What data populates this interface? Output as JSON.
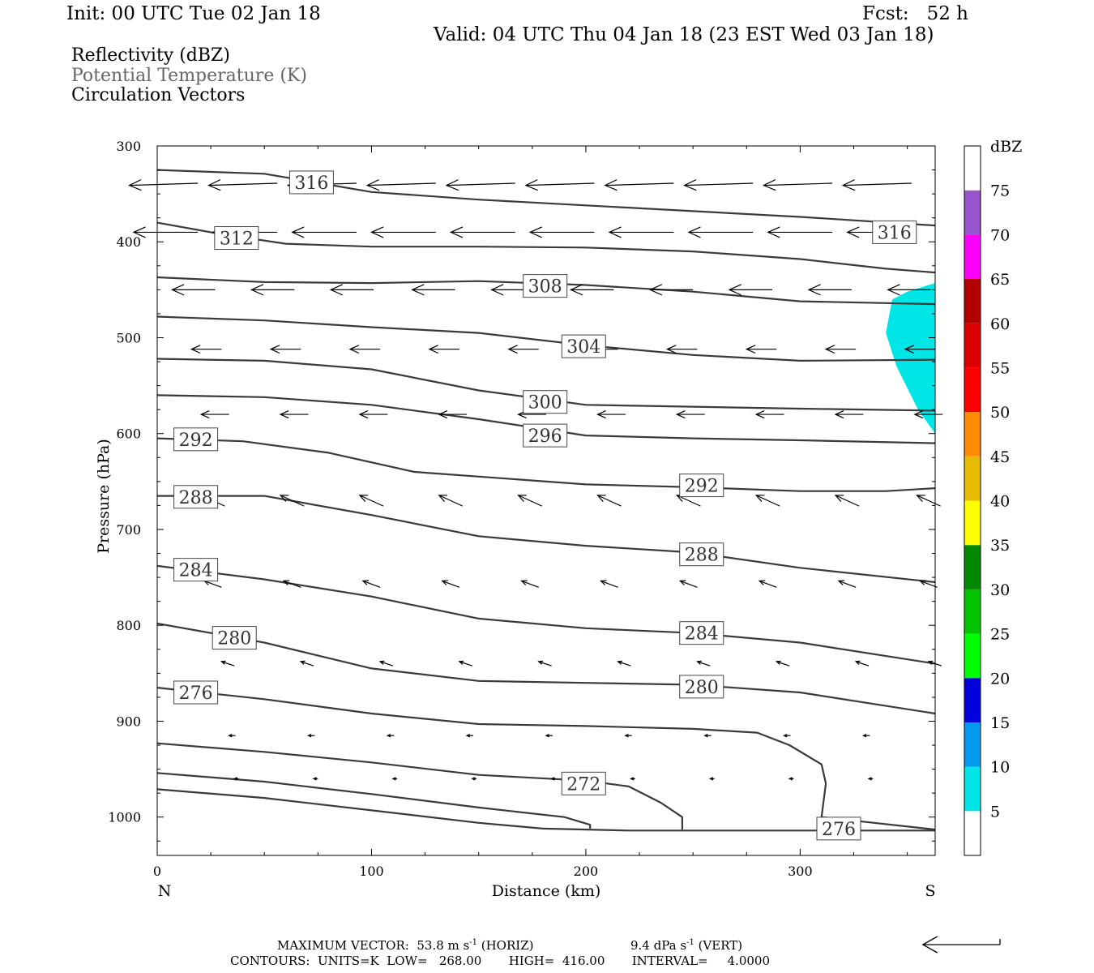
{
  "header": {
    "init": "Init: 00 UTC Tue 02 Jan 18",
    "fcst": "Fcst:   52 h",
    "valid": "Valid: 04 UTC Thu 04 Jan 18 (23 EST Wed 03 Jan 18)"
  },
  "legend": {
    "reflectivity": "Reflectivity (dBZ)",
    "theta": "Potential Temperature (K)",
    "circulation": "Circulation Vectors"
  },
  "colors": {
    "theta_contour": "#3a3a3a",
    "cyan_echo": "#00e6e6",
    "frame": "#000000"
  },
  "chart_data": {
    "type": "cross-section",
    "xlabel": "Distance (km)",
    "ylabel": "Pressure (hPa)",
    "xlim": [
      0,
      363
    ],
    "ylim": [
      1040,
      300
    ],
    "x_ticks": [
      0,
      100,
      200,
      300
    ],
    "y_ticks": [
      300,
      400,
      500,
      600,
      700,
      800,
      900,
      1000
    ],
    "end_labels": {
      "left": "N",
      "right": "S"
    },
    "theta_contours": [
      {
        "label": "316",
        "points": [
          [
            0,
            325
          ],
          [
            50,
            329
          ],
          [
            100,
            348
          ],
          [
            150,
            356
          ],
          [
            200,
            362
          ],
          [
            250,
            368
          ],
          [
            300,
            374
          ],
          [
            363,
            383
          ]
        ]
      },
      {
        "label": "312",
        "points": [
          [
            0,
            380
          ],
          [
            30,
            392
          ],
          [
            60,
            402
          ],
          [
            100,
            405
          ],
          [
            150,
            405
          ],
          [
            200,
            406
          ],
          [
            250,
            410
          ],
          [
            300,
            418
          ],
          [
            340,
            428
          ],
          [
            363,
            432
          ]
        ]
      },
      {
        "label": "308",
        "points": [
          [
            0,
            437
          ],
          [
            50,
            442
          ],
          [
            100,
            443
          ],
          [
            150,
            441
          ],
          [
            200,
            445
          ],
          [
            250,
            452
          ],
          [
            300,
            462
          ],
          [
            363,
            465
          ]
        ]
      },
      {
        "label": "304",
        "points": [
          [
            0,
            478
          ],
          [
            50,
            482
          ],
          [
            100,
            489
          ],
          [
            150,
            495
          ],
          [
            200,
            508
          ],
          [
            250,
            518
          ],
          [
            300,
            524
          ],
          [
            363,
            523
          ]
        ]
      },
      {
        "label": "300",
        "points": [
          [
            0,
            522
          ],
          [
            50,
            524
          ],
          [
            100,
            533
          ],
          [
            150,
            555
          ],
          [
            200,
            570
          ],
          [
            250,
            572
          ],
          [
            300,
            574
          ],
          [
            363,
            576
          ]
        ]
      },
      {
        "label": "296",
        "points": [
          [
            0,
            560
          ],
          [
            50,
            562
          ],
          [
            100,
            570
          ],
          [
            150,
            585
          ],
          [
            200,
            602
          ],
          [
            250,
            605
          ],
          [
            300,
            607
          ],
          [
            363,
            610
          ]
        ]
      },
      {
        "label": "292",
        "points": [
          [
            0,
            605
          ],
          [
            40,
            608
          ],
          [
            80,
            620
          ],
          [
            120,
            640
          ],
          [
            200,
            653
          ],
          [
            250,
            656
          ],
          [
            300,
            660
          ],
          [
            340,
            660
          ],
          [
            363,
            657
          ]
        ]
      },
      {
        "label": "288",
        "points": [
          [
            0,
            665
          ],
          [
            50,
            665
          ],
          [
            100,
            685
          ],
          [
            150,
            707
          ],
          [
            200,
            717
          ],
          [
            250,
            724
          ],
          [
            300,
            740
          ],
          [
            363,
            755
          ]
        ]
      },
      {
        "label": "284",
        "points": [
          [
            0,
            738
          ],
          [
            50,
            752
          ],
          [
            100,
            770
          ],
          [
            150,
            793
          ],
          [
            200,
            803
          ],
          [
            250,
            808
          ],
          [
            300,
            818
          ],
          [
            363,
            840
          ]
        ]
      },
      {
        "label": "280",
        "points": [
          [
            0,
            798
          ],
          [
            50,
            818
          ],
          [
            100,
            845
          ],
          [
            150,
            858
          ],
          [
            200,
            860
          ],
          [
            250,
            862
          ],
          [
            300,
            870
          ],
          [
            363,
            892
          ]
        ]
      },
      {
        "label": "276",
        "points": [
          [
            0,
            865
          ],
          [
            50,
            877
          ],
          [
            100,
            892
          ],
          [
            150,
            903
          ],
          [
            200,
            905
          ],
          [
            250,
            908
          ],
          [
            280,
            912
          ],
          [
            295,
            925
          ],
          [
            310,
            945
          ],
          [
            312,
            965
          ],
          [
            310,
            1000
          ],
          [
            363,
            1013
          ]
        ]
      },
      {
        "label": "272",
        "points": [
          [
            0,
            923
          ],
          [
            50,
            932
          ],
          [
            100,
            943
          ],
          [
            150,
            956
          ],
          [
            200,
            962
          ],
          [
            220,
            968
          ],
          [
            235,
            985
          ],
          [
            245,
            1000
          ],
          [
            245,
            1013
          ]
        ]
      },
      {
        "label": "",
        "points": [
          [
            0,
            954
          ],
          [
            50,
            963
          ],
          [
            100,
            976
          ],
          [
            150,
            990
          ],
          [
            190,
            1000
          ],
          [
            202,
            1008
          ],
          [
            202,
            1012
          ]
        ]
      },
      {
        "label": "",
        "points": [
          [
            0,
            971
          ],
          [
            50,
            980
          ],
          [
            100,
            993
          ],
          [
            150,
            1006
          ],
          [
            180,
            1012
          ],
          [
            220,
            1014
          ],
          [
            300,
            1014
          ],
          [
            363,
            1014
          ]
        ]
      }
    ],
    "contour_label_positions": [
      {
        "text": "316",
        "x": 72,
        "p": 338
      },
      {
        "text": "312",
        "x": 37,
        "p": 396
      },
      {
        "text": "316",
        "x": 344,
        "p": 390
      },
      {
        "text": "308",
        "x": 181,
        "p": 446
      },
      {
        "text": "304",
        "x": 199,
        "p": 509
      },
      {
        "text": "300",
        "x": 181,
        "p": 567
      },
      {
        "text": "296",
        "x": 181,
        "p": 602
      },
      {
        "text": "292",
        "x": 18,
        "p": 606
      },
      {
        "text": "292",
        "x": 254,
        "p": 654
      },
      {
        "text": "288",
        "x": 18,
        "p": 666
      },
      {
        "text": "288",
        "x": 254,
        "p": 726
      },
      {
        "text": "284",
        "x": 18,
        "p": 742
      },
      {
        "text": "284",
        "x": 254,
        "p": 808
      },
      {
        "text": "280",
        "x": 36,
        "p": 813
      },
      {
        "text": "280",
        "x": 254,
        "p": 864
      },
      {
        "text": "276",
        "x": 18,
        "p": 870
      },
      {
        "text": "272",
        "x": 199,
        "p": 965
      },
      {
        "text": "276",
        "x": 318,
        "p": 1012
      }
    ],
    "reflectivity_regions": [
      {
        "dbz": "5-10",
        "points": [
          [
            363,
            443
          ],
          [
            350,
            452
          ],
          [
            343,
            460
          ],
          [
            340,
            495
          ],
          [
            345,
            530
          ],
          [
            355,
            575
          ],
          [
            363,
            600
          ]
        ]
      }
    ],
    "colorbar": {
      "label": "dBZ",
      "levels": [
        "5",
        "10",
        "15",
        "20",
        "25",
        "30",
        "35",
        "40",
        "45",
        "50",
        "55",
        "60",
        "65",
        "70",
        "75"
      ],
      "colors": [
        "#ffffff",
        "#00e6e6",
        "#0099ee",
        "#0000dd",
        "#00ff00",
        "#00c400",
        "#008800",
        "#ffff00",
        "#e6bc00",
        "#ff8c00",
        "#ff0000",
        "#dd0000",
        "#b40000",
        "#ff00ff",
        "#9955cc",
        "#ffffff"
      ]
    },
    "vector_rows": [
      {
        "p": 340,
        "xs": [
          3,
          40,
          77,
          114,
          151,
          188,
          225,
          262,
          299,
          336
        ],
        "du": -32,
        "dp": 1
      },
      {
        "p": 390,
        "xs": [
          4,
          41,
          78,
          115,
          152,
          189,
          226,
          263,
          300,
          337
        ],
        "du": -30,
        "dp": 0
      },
      {
        "p": 450,
        "xs": [
          17,
          54,
          91,
          129,
          166,
          203,
          240,
          277,
          314,
          351
        ],
        "du": -20,
        "dp": 0
      },
      {
        "p": 512,
        "xs": [
          23,
          60,
          97,
          134,
          171,
          208,
          245,
          282,
          319,
          356
        ],
        "du": -14,
        "dp": 0
      },
      {
        "p": 580,
        "xs": [
          27,
          64,
          101,
          138,
          175,
          212,
          249,
          286,
          323,
          360
        ],
        "du": -13,
        "dp": 0
      },
      {
        "p": 670,
        "xs": [
          26,
          63,
          100,
          137,
          174,
          211,
          248,
          285,
          322,
          360
        ],
        "du": -11,
        "dp": -5
      },
      {
        "p": 757,
        "xs": [
          26,
          63,
          100,
          137,
          174,
          211,
          248,
          285,
          322,
          360
        ],
        "du": -8,
        "dp": -3
      },
      {
        "p": 840,
        "xs": [
          33,
          70,
          107,
          144,
          181,
          218,
          255,
          292,
          329,
          363
        ],
        "du": -6,
        "dp": -2
      },
      {
        "p": 915,
        "xs": [
          35,
          72,
          109,
          146,
          183,
          220,
          257,
          294,
          331
        ],
        "du": -3,
        "dp": 0
      },
      {
        "p": 960,
        "xs": [
          37,
          74,
          111,
          148,
          185,
          222,
          259,
          296,
          333
        ],
        "du": -2,
        "dp": 0
      }
    ],
    "reference_vector": {
      "du": -36
    }
  },
  "footer": {
    "max_vector_prefix": "MAXIMUM VECTOR:  53.8 m s",
    "max_vector_horiz": " (HORIZ)",
    "max_vector_vert_prefix": "9.4 dPa s",
    "max_vector_vert": " (VERT)",
    "sup_minus_one": "-1",
    "contours": "CONTOURS:  UNITS=K  LOW=   268.00       HIGH=  416.00       INTERVAL=     4.0000"
  }
}
